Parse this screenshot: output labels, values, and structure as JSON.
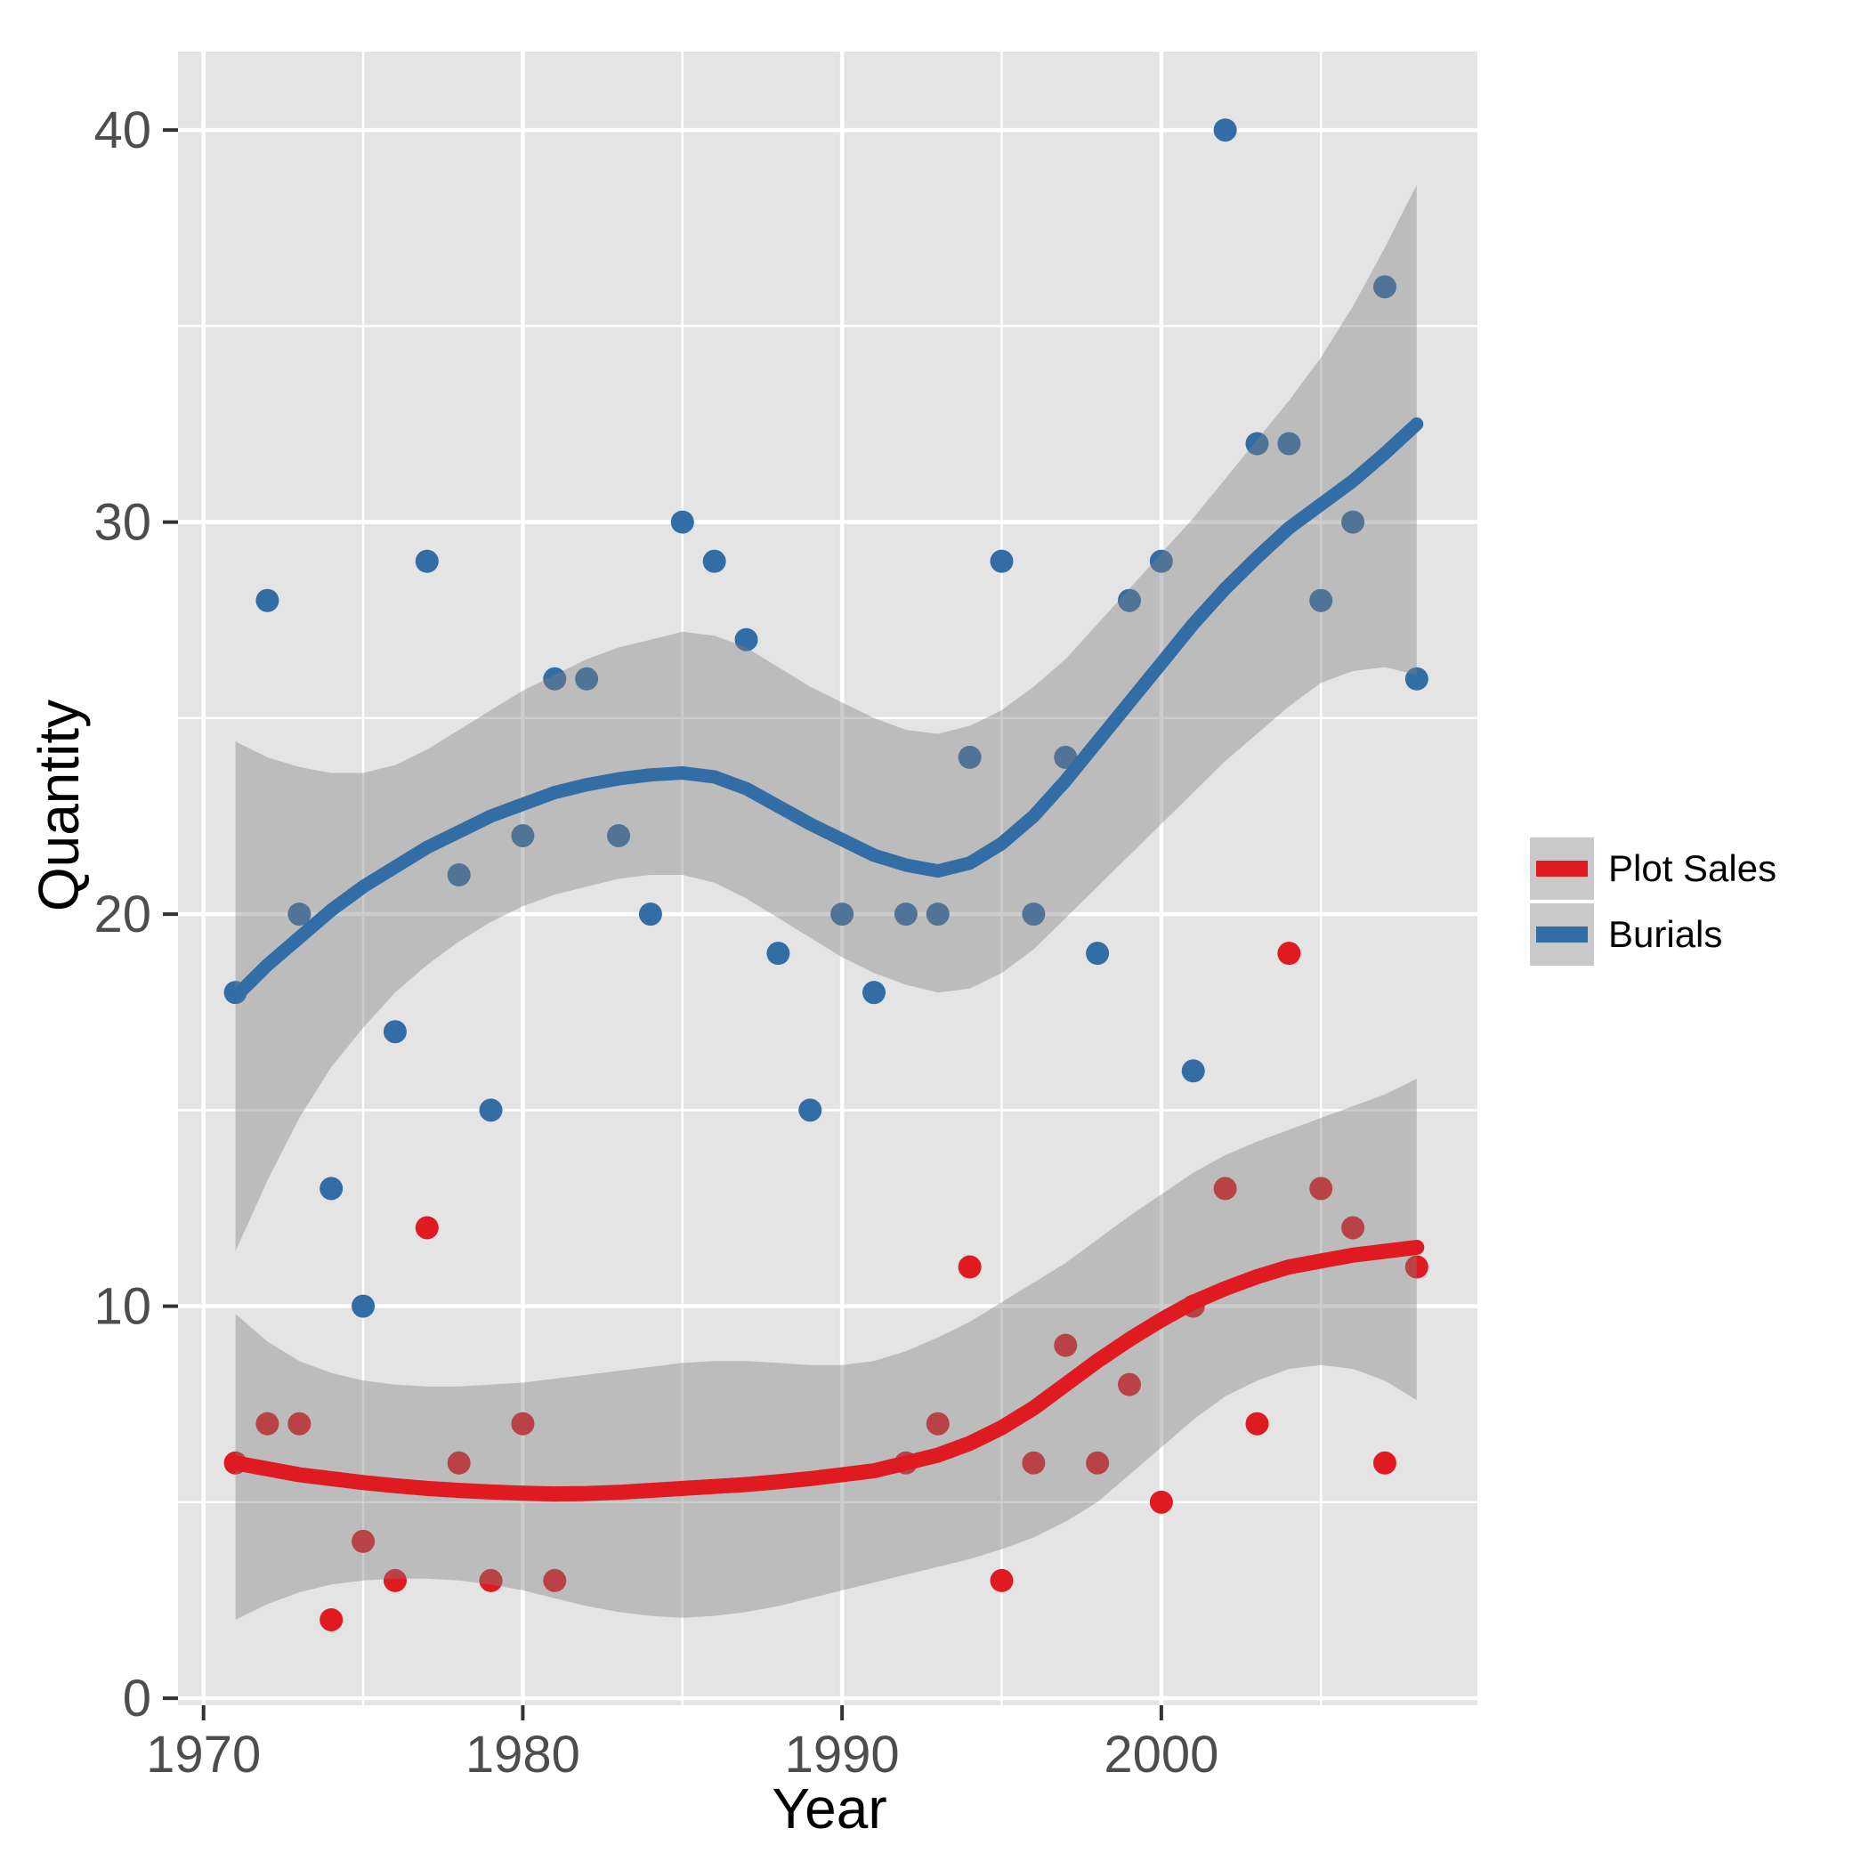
{
  "axes": {
    "x_title": "Year",
    "y_title": "Quantity",
    "x_major_ticks": [
      1970,
      1980,
      1990,
      2000
    ],
    "x_minor_ticks": [
      1975,
      1985,
      1995,
      2005
    ],
    "y_major_ticks": [
      0,
      10,
      20,
      30,
      40
    ],
    "y_minor_ticks": [
      5,
      15,
      25,
      35
    ],
    "tick_label_color": "#4D4D4D",
    "tick_mark_color": "#333333"
  },
  "legend": {
    "items": [
      {
        "label": "Plot Sales",
        "color": "#DF1A20"
      },
      {
        "label": "Burials",
        "color": "#326DA5"
      }
    ],
    "key_background": "#C9C9C9"
  },
  "style": {
    "panel_background": "#E4E4E4",
    "grid_color": "#FFFFFF",
    "ribbon_fill": "rgba(128,128,128,0.40)",
    "point_radius": 13
  },
  "chart_data": {
    "type": "scatter",
    "title": "",
    "xlabel": "Year",
    "ylabel": "Quantity",
    "xlim": [
      1969.2,
      2009.9
    ],
    "ylim": [
      -0.18,
      42.0
    ],
    "grid": "on",
    "legend_position": "right",
    "years_grid": [
      1971,
      1972,
      1973,
      1974,
      1975,
      1976,
      1977,
      1978,
      1979,
      1980,
      1981,
      1982,
      1983,
      1984,
      1985,
      1986,
      1987,
      1988,
      1989,
      1990,
      1991,
      1992,
      1993,
      1994,
      1995,
      1996,
      1997,
      1998,
      1999,
      2000,
      2001,
      2002,
      2003,
      2004,
      2005,
      2006,
      2007,
      2008
    ],
    "series": [
      {
        "id": "plot_sales",
        "name": "Plot Sales",
        "color": "#DF1A20",
        "line_width": 17,
        "points": [
          [
            1971,
            6
          ],
          [
            1972,
            7
          ],
          [
            1973,
            7
          ],
          [
            1974,
            2
          ],
          [
            1975,
            4
          ],
          [
            1976,
            3
          ],
          [
            1977,
            12
          ],
          [
            1978,
            6
          ],
          [
            1979,
            3
          ],
          [
            1980,
            7
          ],
          [
            1981,
            3
          ],
          [
            1992,
            6
          ],
          [
            1993,
            7
          ],
          [
            1994,
            11
          ],
          [
            1995,
            3
          ],
          [
            1996,
            6
          ],
          [
            1997,
            9
          ],
          [
            1998,
            6
          ],
          [
            1999,
            8
          ],
          [
            2000,
            5
          ],
          [
            2001,
            10
          ],
          [
            2002,
            13
          ],
          [
            2003,
            7
          ],
          [
            2004,
            19
          ],
          [
            2005,
            13
          ],
          [
            2006,
            12
          ],
          [
            2007,
            6
          ],
          [
            2008,
            11
          ]
        ],
        "smooth_values": [
          6.0,
          5.85,
          5.7,
          5.6,
          5.5,
          5.42,
          5.35,
          5.3,
          5.26,
          5.23,
          5.21,
          5.22,
          5.25,
          5.3,
          5.35,
          5.4,
          5.45,
          5.52,
          5.6,
          5.7,
          5.8,
          6.0,
          6.2,
          6.5,
          6.9,
          7.4,
          8.0,
          8.6,
          9.15,
          9.65,
          10.1,
          10.45,
          10.75,
          11.0,
          11.15,
          11.3,
          11.4,
          11.5
        ],
        "ci_upper": [
          9.8,
          9.1,
          8.6,
          8.3,
          8.1,
          8.0,
          7.95,
          7.95,
          8.0,
          8.05,
          8.15,
          8.25,
          8.35,
          8.45,
          8.55,
          8.6,
          8.6,
          8.55,
          8.5,
          8.5,
          8.6,
          8.85,
          9.2,
          9.6,
          10.1,
          10.6,
          11.1,
          11.7,
          12.3,
          12.85,
          13.4,
          13.85,
          14.2,
          14.5,
          14.8,
          15.1,
          15.4,
          15.8
        ],
        "ci_lower": [
          2.0,
          2.4,
          2.7,
          2.9,
          3.0,
          3.05,
          3.05,
          3.0,
          2.9,
          2.75,
          2.55,
          2.35,
          2.2,
          2.1,
          2.05,
          2.1,
          2.2,
          2.35,
          2.55,
          2.75,
          2.95,
          3.15,
          3.35,
          3.55,
          3.8,
          4.1,
          4.5,
          5.0,
          5.7,
          6.4,
          7.1,
          7.7,
          8.1,
          8.4,
          8.5,
          8.4,
          8.1,
          7.6
        ]
      },
      {
        "id": "burials",
        "name": "Burials",
        "color": "#326DA5",
        "line_width": 15,
        "points": [
          [
            1971,
            18
          ],
          [
            1972,
            28
          ],
          [
            1973,
            20
          ],
          [
            1974,
            13
          ],
          [
            1975,
            10
          ],
          [
            1976,
            17
          ],
          [
            1977,
            29
          ],
          [
            1978,
            21
          ],
          [
            1979,
            15
          ],
          [
            1980,
            22
          ],
          [
            1981,
            26
          ],
          [
            1982,
            26
          ],
          [
            1983,
            22
          ],
          [
            1984,
            20
          ],
          [
            1985,
            30
          ],
          [
            1986,
            29
          ],
          [
            1987,
            27
          ],
          [
            1988,
            19
          ],
          [
            1989,
            15
          ],
          [
            1990,
            20
          ],
          [
            1991,
            18
          ],
          [
            1992,
            20
          ],
          [
            1993,
            20
          ],
          [
            1994,
            24
          ],
          [
            1995,
            29
          ],
          [
            1996,
            20
          ],
          [
            1997,
            24
          ],
          [
            1998,
            19
          ],
          [
            1999,
            28
          ],
          [
            2000,
            29
          ],
          [
            2001,
            16
          ],
          [
            2002,
            40
          ],
          [
            2003,
            32
          ],
          [
            2004,
            32
          ],
          [
            2005,
            28
          ],
          [
            2006,
            30
          ],
          [
            2007,
            36
          ],
          [
            2008,
            26
          ]
        ],
        "smooth_values": [
          17.9,
          18.7,
          19.4,
          20.1,
          20.7,
          21.2,
          21.7,
          22.1,
          22.5,
          22.8,
          23.1,
          23.3,
          23.45,
          23.55,
          23.6,
          23.5,
          23.2,
          22.75,
          22.3,
          21.9,
          21.5,
          21.25,
          21.1,
          21.3,
          21.8,
          22.5,
          23.4,
          24.4,
          25.4,
          26.4,
          27.4,
          28.3,
          29.1,
          29.85,
          30.45,
          31.05,
          31.75,
          32.5
        ],
        "ci_upper": [
          24.4,
          24.0,
          23.75,
          23.6,
          23.6,
          23.8,
          24.2,
          24.7,
          25.2,
          25.7,
          26.1,
          26.5,
          26.8,
          27.0,
          27.2,
          27.1,
          26.8,
          26.3,
          25.8,
          25.4,
          25.0,
          24.7,
          24.6,
          24.8,
          25.2,
          25.8,
          26.5,
          27.4,
          28.3,
          29.2,
          30.1,
          31.1,
          32.1,
          33.1,
          34.2,
          35.5,
          37.0,
          38.6
        ],
        "ci_lower": [
          11.4,
          13.2,
          14.8,
          16.1,
          17.1,
          18.0,
          18.7,
          19.3,
          19.8,
          20.2,
          20.5,
          20.7,
          20.9,
          21.0,
          21.0,
          20.8,
          20.4,
          19.9,
          19.4,
          18.9,
          18.5,
          18.2,
          18.0,
          18.1,
          18.5,
          19.1,
          19.9,
          20.7,
          21.5,
          22.3,
          23.1,
          23.9,
          24.6,
          25.3,
          25.9,
          26.2,
          26.3,
          26.1
        ]
      }
    ]
  }
}
